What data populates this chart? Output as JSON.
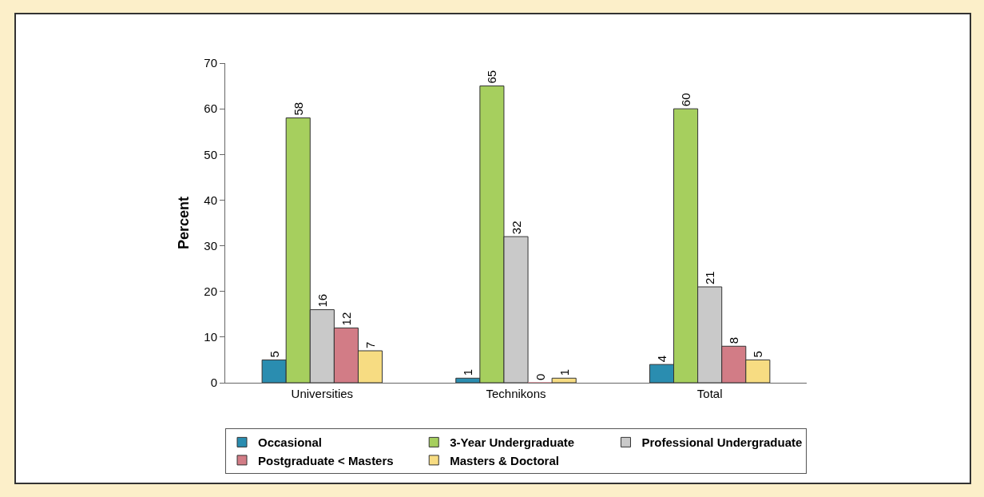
{
  "chart_data": {
    "type": "bar",
    "ylabel": "Percent",
    "categories": [
      "Universities",
      "Technikons",
      "Total"
    ],
    "series": [
      {
        "name": "Occasional",
        "color": "#2a8db0",
        "values": [
          5,
          1,
          4
        ]
      },
      {
        "name": "3-Year Undergraduate",
        "color": "#a6cf5e",
        "values": [
          58,
          65,
          60
        ]
      },
      {
        "name": "Professional Undergraduate",
        "color": "#c9c9c9",
        "values": [
          16,
          32,
          21
        ]
      },
      {
        "name": "Postgraduate < Masters",
        "color": "#d27c86",
        "values": [
          12,
          0,
          8
        ]
      },
      {
        "name": "Masters & Doctoral",
        "color": "#f7dc82",
        "values": [
          7,
          1,
          5
        ]
      }
    ],
    "ylim": [
      0,
      70
    ],
    "yticks": [
      0,
      10,
      20,
      30,
      40,
      50,
      60,
      70
    ],
    "grid": false,
    "legend": "bottom",
    "data_labels": true
  }
}
